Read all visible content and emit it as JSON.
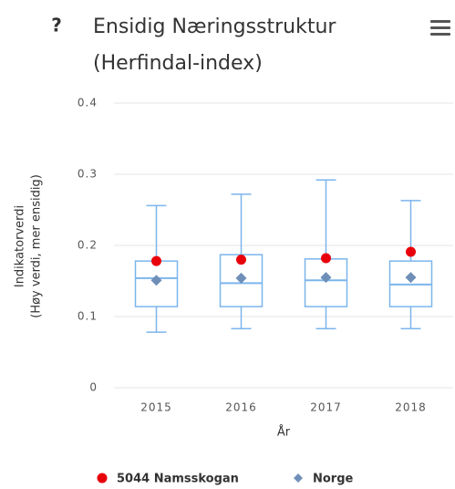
{
  "help_icon": "?",
  "chart_data": {
    "type": "boxplot",
    "title": [
      "Ensidig Næringsstruktur",
      "(Herfindal-index)"
    ],
    "y_label": [
      "Indikatorverdi",
      "(Høy verdi, mer ensidig)"
    ],
    "x_label": "År",
    "categories": [
      "2015",
      "2016",
      "2017",
      "2018"
    ],
    "box_color": "#7cb5ec",
    "boxes": [
      {
        "min": 0.078,
        "q1": 0.114,
        "median": 0.154,
        "q3": 0.178,
        "max": 0.256
      },
      {
        "min": 0.083,
        "q1": 0.114,
        "median": 0.147,
        "q3": 0.187,
        "max": 0.272
      },
      {
        "min": 0.083,
        "q1": 0.114,
        "median": 0.151,
        "q3": 0.181,
        "max": 0.292
      },
      {
        "min": 0.083,
        "q1": 0.114,
        "median": 0.145,
        "q3": 0.178,
        "max": 0.263
      }
    ],
    "series": [
      {
        "name": "5044 Namsskogan",
        "color": "#e8000b",
        "marker": "circle",
        "values": [
          0.178,
          0.18,
          0.182,
          0.191
        ]
      },
      {
        "name": "Norge",
        "color": "#6f8fb8",
        "marker": "diamond",
        "values": [
          0.151,
          0.154,
          0.155,
          0.155
        ]
      }
    ],
    "ylim": [
      0,
      0.4
    ],
    "yticks": [
      0,
      0.1,
      0.2,
      0.3,
      0.4
    ],
    "grid": true,
    "legend": "bottom"
  }
}
